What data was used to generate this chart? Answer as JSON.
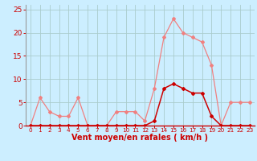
{
  "x": [
    0,
    1,
    2,
    3,
    4,
    5,
    6,
    7,
    8,
    9,
    10,
    11,
    12,
    13,
    14,
    15,
    16,
    17,
    18,
    19,
    20,
    21,
    22,
    23
  ],
  "rafales": [
    0,
    6,
    3,
    2,
    2,
    6,
    0,
    0,
    0,
    3,
    3,
    3,
    1,
    8,
    19,
    23,
    20,
    19,
    18,
    13,
    0,
    5,
    5,
    5
  ],
  "moyen": [
    0,
    0,
    0,
    0,
    0,
    0,
    0,
    0,
    0,
    0,
    0,
    0,
    0,
    1,
    8,
    9,
    8,
    7,
    7,
    2,
    0,
    0,
    0,
    0
  ],
  "color_rafales": "#f08080",
  "color_moyen": "#cc0000",
  "bg_color": "#cceeff",
  "grid_color": "#aacccc",
  "xlabel": "Vent moyen/en rafales ( km/h )",
  "xlabel_color": "#cc0000",
  "tick_color": "#cc0000",
  "axis_color": "#cc0000",
  "ylim": [
    0,
    26
  ],
  "yticks": [
    0,
    5,
    10,
    15,
    20,
    25
  ],
  "xlim": [
    -0.5,
    23.5
  ],
  "marker": "D",
  "markersize": 2.0,
  "linewidth_rafales": 0.9,
  "linewidth_moyen": 1.1,
  "tick_fontsize_y": 6.5,
  "tick_fontsize_x": 5.2,
  "xlabel_fontsize": 7.0,
  "xlabel_fontweight": "bold"
}
